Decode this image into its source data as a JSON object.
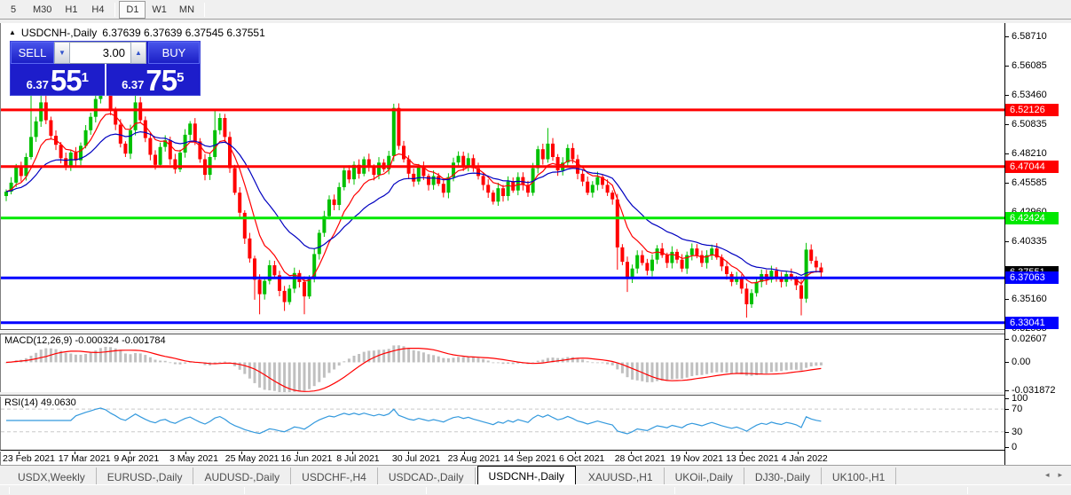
{
  "toolbar": {
    "buttons": [
      {
        "label": "5",
        "active": false
      },
      {
        "label": "M30",
        "active": false
      },
      {
        "label": "H1",
        "active": false
      },
      {
        "label": "H4",
        "active": false
      },
      {
        "sep": true
      },
      {
        "label": "D1",
        "active": true
      },
      {
        "label": "W1",
        "active": false
      },
      {
        "label": "MN",
        "active": false
      },
      {
        "sep": true
      }
    ]
  },
  "chart": {
    "title": {
      "collapse_arrow": "▲",
      "symbol": "USDCNH-,Daily",
      "ohlc_display": "6.37639 6.37639 6.37545 6.37551"
    },
    "trade_panel": {
      "sell_label": "SELL",
      "buy_label": "BUY",
      "volume": "3.00",
      "down_arrow": "▼",
      "up_arrow": "▲",
      "sell_price": {
        "small": "6.37",
        "big": "55",
        "sup": "1"
      },
      "buy_price": {
        "small": "6.37",
        "big": "75",
        "sup": "5"
      }
    }
  },
  "macd_panel": {
    "label": "MACD(12,26,9) -0.000324 -0.001784",
    "macd_value_display": "-0.000324",
    "signal_value_display": "-0.001784"
  },
  "rsi_panel": {
    "label": "RSI(14) 49.0630",
    "value_display": "49.0630"
  },
  "tabs": {
    "items": [
      {
        "label": "USDX,Weekly",
        "active": false
      },
      {
        "label": "EURUSD-,Daily",
        "active": false
      },
      {
        "label": "AUDUSD-,Daily",
        "active": false
      },
      {
        "label": "USDCHF-,H4",
        "active": false
      },
      {
        "label": "USDCAD-,Daily",
        "active": false
      },
      {
        "label": "USDCNH-,Daily",
        "active": true
      },
      {
        "label": "XAUUSD-,H1",
        "active": false
      },
      {
        "label": "UKOil-,Daily",
        "active": false
      },
      {
        "label": "DJ30-,Daily",
        "active": false
      },
      {
        "label": "UK100-,H1",
        "active": false
      }
    ],
    "scroll_left": "◂",
    "scroll_right": "▸"
  },
  "colors": {
    "bull": "#00c000",
    "bear": "#ff0000",
    "ma_fast": "#ff0000",
    "ma_slow": "#0000c0",
    "macd_hist": "#c0c0c0",
    "macd_signal": "#ff0000",
    "rsi_line": "#3399dd",
    "level_red": "#ff0000",
    "level_green": "#00e800",
    "level_blue": "#0000ff",
    "last_price_badge_bg": "#000000"
  },
  "chart_data": {
    "type": "candlestick",
    "symbol": "USDCNH-,Daily",
    "timeframe": "Daily",
    "ohlc_current": {
      "open": "6.37639",
      "high": "6.37639",
      "low": "6.37545",
      "close": "6.37551"
    },
    "ylim": [
      6.3239,
      6.5991
    ],
    "closes": [
      6.448,
      6.456,
      6.47,
      6.462,
      6.479,
      6.497,
      6.511,
      6.528,
      6.512,
      6.498,
      6.49,
      6.478,
      6.47,
      6.483,
      6.476,
      6.489,
      6.503,
      6.515,
      6.531,
      6.543,
      6.536,
      6.521,
      6.508,
      6.491,
      6.482,
      6.503,
      6.528,
      6.512,
      6.496,
      6.481,
      6.472,
      6.488,
      6.494,
      6.477,
      6.468,
      6.483,
      6.499,
      6.509,
      6.493,
      6.477,
      6.463,
      6.479,
      6.503,
      6.514,
      6.497,
      6.469,
      6.447,
      6.429,
      6.406,
      6.388,
      6.369,
      6.356,
      6.368,
      6.382,
      6.373,
      6.359,
      6.349,
      6.361,
      6.375,
      6.367,
      6.354,
      6.371,
      6.392,
      6.411,
      6.426,
      6.441,
      6.436,
      6.452,
      6.467,
      6.459,
      6.472,
      6.464,
      6.477,
      6.47,
      6.463,
      6.474,
      6.468,
      6.48,
      6.523,
      6.489,
      6.477,
      6.464,
      6.457,
      6.47,
      6.462,
      6.454,
      6.462,
      6.455,
      6.447,
      6.461,
      6.474,
      6.48,
      6.471,
      6.478,
      6.469,
      6.462,
      6.454,
      6.447,
      6.439,
      6.451,
      6.444,
      6.457,
      6.449,
      6.461,
      6.454,
      6.447,
      6.469,
      6.486,
      6.477,
      6.491,
      6.479,
      6.467,
      6.474,
      6.487,
      6.477,
      6.464,
      6.457,
      6.447,
      6.454,
      6.461,
      6.454,
      6.447,
      6.441,
      6.398,
      6.385,
      6.371,
      6.379,
      6.391,
      6.384,
      6.377,
      6.387,
      6.397,
      6.391,
      6.384,
      6.394,
      6.387,
      6.379,
      6.391,
      6.397,
      6.391,
      6.384,
      6.391,
      6.397,
      6.389,
      6.381,
      6.374,
      6.367,
      6.371,
      6.361,
      6.347,
      6.357,
      6.367,
      6.374,
      6.369,
      6.377,
      6.371,
      6.367,
      6.374,
      6.37,
      6.364,
      6.352,
      6.396,
      6.386,
      6.38,
      6.3755
    ],
    "first_open": 6.444,
    "wick_overrides": {
      "5": {
        "h": 6.545
      },
      "7": {
        "h": 6.557
      },
      "8": {
        "h": 6.548
      },
      "19": {
        "h": 6.559
      },
      "26": {
        "h": 6.552
      },
      "42": {
        "h": 6.522
      },
      "50": {
        "l": 6.351
      },
      "51": {
        "l": 6.338
      },
      "56": {
        "l": 6.341
      },
      "60": {
        "l": 6.338
      },
      "78": {
        "h": 6.526
      },
      "109": {
        "h": 6.505
      },
      "123": {
        "l": 6.378
      },
      "125": {
        "l": 6.358
      },
      "149": {
        "l": 6.335
      },
      "160": {
        "l": 6.337
      },
      "161": {
        "h": 6.402
      }
    },
    "moving_averages": [
      {
        "name": "fast",
        "period": 8,
        "color": "#ff0000"
      },
      {
        "name": "slow",
        "period": 21,
        "color": "#0000c0"
      }
    ],
    "price_axis_ticks": [
      {
        "label": "6.58710",
        "value": 6.5871
      },
      {
        "label": "6.56085",
        "value": 6.56085
      },
      {
        "label": "6.53460",
        "value": 6.5346
      },
      {
        "label": "6.50835",
        "value": 6.50835
      },
      {
        "label": "6.48210",
        "value": 6.4821
      },
      {
        "label": "6.45585",
        "value": 6.45585
      },
      {
        "label": "6.42960",
        "value": 6.4296
      },
      {
        "label": "6.40335",
        "value": 6.40335
      },
      {
        "label": "6.37710",
        "value": 6.3771
      },
      {
        "label": "6.35160",
        "value": 6.3516
      },
      {
        "label": "6.32535",
        "value": 6.32535
      }
    ],
    "horizontal_levels": [
      {
        "label": "6.52126",
        "value": 6.52126,
        "color": "#ff0000"
      },
      {
        "label": "6.47044",
        "value": 6.47044,
        "color": "#ff0000"
      },
      {
        "label": "6.42424",
        "value": 6.42424,
        "color": "#00e800"
      },
      {
        "label": "6.37063",
        "value": 6.37063,
        "color": "#0000ff"
      },
      {
        "label": "6.33041",
        "value": 6.33041,
        "color": "#0000ff"
      }
    ],
    "last_price": {
      "label": "6.37551",
      "value": 6.37551
    },
    "x_axis_labels": [
      "23 Feb 2021",
      "17 Mar 2021",
      "9 Apr 2021",
      "3 May 2021",
      "25 May 2021",
      "16 Jun 2021",
      "8 Jul 2021",
      "30 Jul 2021",
      "23 Aug 2021",
      "14 Sep 2021",
      "6 Oct 2021",
      "28 Oct 2021",
      "19 Nov 2021",
      "13 Dec 2021",
      "4 Jan 2022"
    ],
    "indicators": {
      "macd": {
        "fast": 12,
        "slow": 26,
        "signal": 9,
        "axis_ticks": [
          {
            "label": "0.02607",
            "value": 0.02607
          },
          {
            "label": "0.00",
            "value": 0.0
          },
          {
            "label": "-0.031872",
            "value": -0.031872
          }
        ],
        "ylim": [
          -0.0336,
          0.0315
        ]
      },
      "rsi": {
        "period": 14,
        "axis_ticks": [
          {
            "label": "100",
            "value": 100
          },
          {
            "label": "70",
            "value": 70
          },
          {
            "label": "30",
            "value": 30
          },
          {
            "label": "0",
            "value": 0
          }
        ],
        "levels": [
          70,
          30
        ],
        "ylim": [
          -3,
          92
        ]
      }
    }
  }
}
